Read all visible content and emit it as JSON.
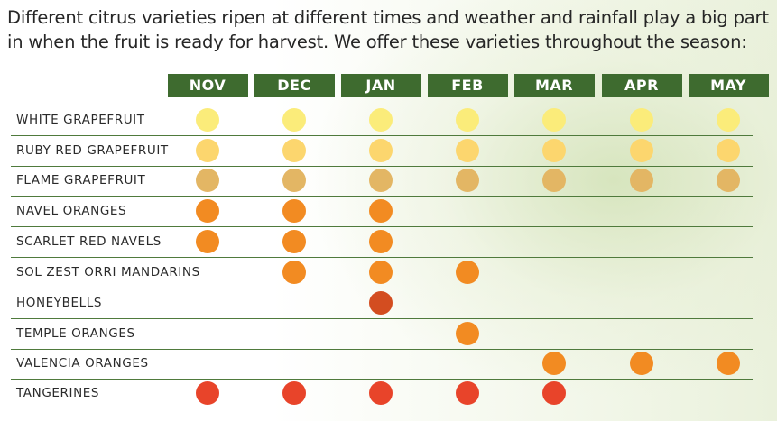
{
  "intro_text": "Different citrus varieties ripen at different times and weather and rainfall play a big part in when the fruit is ready for harvest. We offer these varieties throughout the season:",
  "months": [
    "NOV",
    "DEC",
    "JAN",
    "FEB",
    "MAR",
    "APR",
    "MAY"
  ],
  "colors": {
    "header_bg": "#3e6b2f",
    "white_grapefruit": "#fbec7a",
    "ruby_red_grapefruit": "#fcd66e",
    "flame_grapefruit": "#e3b664",
    "orange": "#f28b22",
    "honeybells": "#d34d20",
    "tangerine": "#e8442a"
  },
  "varieties": [
    {
      "name": "WHITE GRAPEFRUIT",
      "color": "#fbec7a",
      "availability": [
        true,
        true,
        true,
        true,
        true,
        true,
        true
      ]
    },
    {
      "name": "RUBY RED GRAPEFRUIT",
      "color": "#fcd66e",
      "availability": [
        true,
        true,
        true,
        true,
        true,
        true,
        true
      ]
    },
    {
      "name": "FLAME GRAPEFRUIT",
      "color": "#e3b664",
      "availability": [
        true,
        true,
        true,
        true,
        true,
        true,
        true
      ]
    },
    {
      "name": "NAVEL ORANGES",
      "color": "#f28b22",
      "availability": [
        true,
        true,
        true,
        false,
        false,
        false,
        false
      ]
    },
    {
      "name": "SCARLET RED NAVELS",
      "color": "#f28b22",
      "availability": [
        true,
        true,
        true,
        false,
        false,
        false,
        false
      ]
    },
    {
      "name": "SOL ZEST ORRI MANDARINS",
      "color": "#f28b22",
      "availability": [
        false,
        true,
        true,
        true,
        false,
        false,
        false
      ]
    },
    {
      "name": "HONEYBELLS",
      "color": "#d34d20",
      "availability": [
        false,
        false,
        true,
        false,
        false,
        false,
        false
      ]
    },
    {
      "name": "TEMPLE ORANGES",
      "color": "#f28b22",
      "availability": [
        false,
        false,
        false,
        true,
        false,
        false,
        false
      ]
    },
    {
      "name": "VALENCIA ORANGES",
      "color": "#f28b22",
      "availability": [
        false,
        false,
        false,
        false,
        true,
        true,
        true
      ]
    },
    {
      "name": "TANGERINES",
      "color": "#e8442a",
      "availability": [
        true,
        true,
        true,
        true,
        true,
        false,
        false
      ]
    }
  ]
}
